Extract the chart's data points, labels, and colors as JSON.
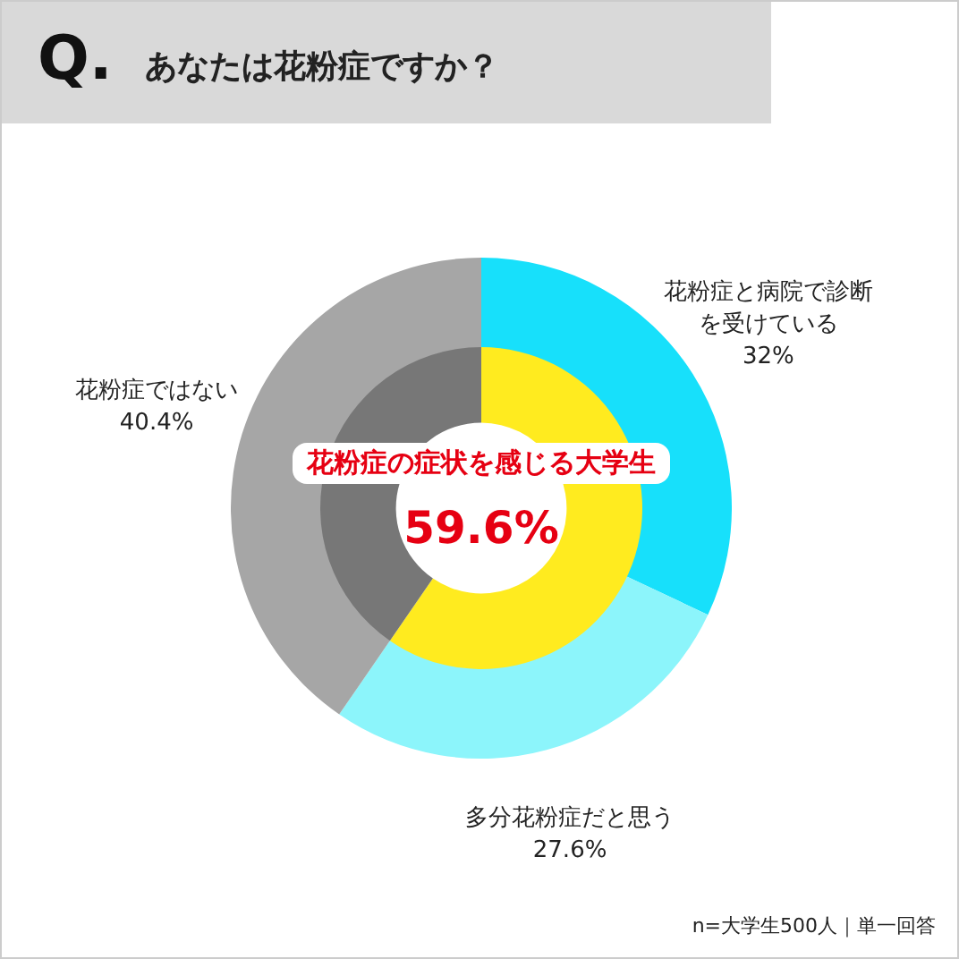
{
  "chart_data": [
    {
      "type": "donut",
      "title": "あなたは花粉症ですか？",
      "categories": [
        "花粉症と病院で診断を受けている",
        "多分花粉症だと思う",
        "花粉症ではない"
      ],
      "values": [
        32,
        27.6,
        40.4
      ],
      "colors": [
        "#17e0fb",
        "#8cf5fb",
        "#a6a6a6"
      ],
      "value_labels": [
        "32%",
        "27.6%",
        "40.4%"
      ],
      "annotations": [
        "Q.",
        "n=大学生500人｜単一回答"
      ]
    },
    {
      "type": "donut",
      "categories": [
        "花粉症の症状を感じる大学生",
        null
      ],
      "values": [
        59.6,
        40.4
      ],
      "colors": [
        "#ffeb1f",
        "#777777"
      ],
      "value_labels": [
        "59.6%",
        null
      ]
    }
  ]
}
